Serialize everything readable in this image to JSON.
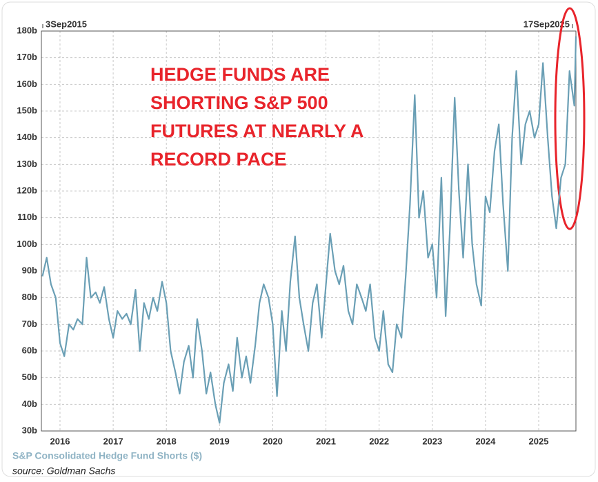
{
  "chart_data": {
    "type": "line",
    "start_label": "3Sep2015",
    "end_label": "17Sep2025",
    "annotation": [
      "HEDGE FUNDS ARE",
      "SHORTING S&P 500",
      "FUTURES AT NEARLY A",
      "RECORD PACE"
    ],
    "source": "source: Goldman Sachs",
    "x": [
      2015.67,
      2015.75,
      2015.83,
      2015.92,
      2016.0,
      2016.08,
      2016.17,
      2016.25,
      2016.33,
      2016.42,
      2016.5,
      2016.58,
      2016.67,
      2016.75,
      2016.83,
      2016.92,
      2017.0,
      2017.08,
      2017.17,
      2017.25,
      2017.33,
      2017.42,
      2017.5,
      2017.58,
      2017.67,
      2017.75,
      2017.83,
      2017.92,
      2018.0,
      2018.08,
      2018.17,
      2018.25,
      2018.33,
      2018.42,
      2018.5,
      2018.58,
      2018.67,
      2018.75,
      2018.83,
      2018.92,
      2019.0,
      2019.08,
      2019.17,
      2019.25,
      2019.33,
      2019.42,
      2019.5,
      2019.58,
      2019.67,
      2019.75,
      2019.83,
      2019.92,
      2020.0,
      2020.08,
      2020.17,
      2020.25,
      2020.33,
      2020.42,
      2020.5,
      2020.58,
      2020.67,
      2020.75,
      2020.83,
      2020.92,
      2021.0,
      2021.08,
      2021.17,
      2021.25,
      2021.33,
      2021.42,
      2021.5,
      2021.58,
      2021.67,
      2021.75,
      2021.83,
      2021.92,
      2022.0,
      2022.08,
      2022.17,
      2022.25,
      2022.33,
      2022.42,
      2022.5,
      2022.58,
      2022.67,
      2022.75,
      2022.83,
      2022.92,
      2023.0,
      2023.08,
      2023.17,
      2023.25,
      2023.33,
      2023.42,
      2023.5,
      2023.58,
      2023.67,
      2023.75,
      2023.83,
      2023.92,
      2024.0,
      2024.08,
      2024.17,
      2024.25,
      2024.33,
      2024.42,
      2024.5,
      2024.58,
      2024.67,
      2024.75,
      2024.83,
      2024.92,
      2025.0,
      2025.08,
      2025.17,
      2025.25,
      2025.33,
      2025.42,
      2025.5,
      2025.58,
      2025.67,
      2025.7
    ],
    "series": [
      {
        "name": "S&P Consolidated Hedge Fund Shorts ($)",
        "color": "#6a9fb5",
        "values": [
          88,
          95,
          85,
          80,
          63,
          58,
          70,
          68,
          72,
          70,
          95,
          80,
          82,
          78,
          84,
          72,
          65,
          75,
          72,
          74,
          70,
          83,
          60,
          78,
          72,
          80,
          75,
          86,
          78,
          60,
          52,
          44,
          56,
          62,
          50,
          72,
          60,
          44,
          52,
          40,
          33,
          48,
          55,
          45,
          65,
          50,
          58,
          48,
          62,
          78,
          85,
          80,
          70,
          43,
          75,
          60,
          86,
          103,
          80,
          70,
          60,
          78,
          85,
          65,
          85,
          104,
          90,
          85,
          92,
          75,
          70,
          85,
          80,
          75,
          85,
          65,
          60,
          75,
          55,
          52,
          70,
          65,
          88,
          115,
          156,
          110,
          120,
          95,
          100,
          80,
          125,
          73,
          105,
          155,
          120,
          95,
          130,
          100,
          85,
          77,
          118,
          112,
          135,
          145,
          115,
          90,
          140,
          165,
          130,
          145,
          150,
          140,
          145,
          168,
          140,
          118,
          106,
          125,
          130,
          165,
          152,
          178
        ]
      }
    ],
    "xlim": [
      2015.65,
      2025.7
    ],
    "xticks": [
      2016,
      2017,
      2018,
      2019,
      2020,
      2021,
      2022,
      2023,
      2024,
      2025
    ],
    "ylim": [
      30,
      180
    ],
    "yticks": [
      {
        "value": 30,
        "label": "30b"
      },
      {
        "value": 40,
        "label": "40b"
      },
      {
        "value": 50,
        "label": "50b"
      },
      {
        "value": 60,
        "label": "60b"
      },
      {
        "value": 70,
        "label": "70b"
      },
      {
        "value": 80,
        "label": "80b"
      },
      {
        "value": 90,
        "label": "90b"
      },
      {
        "value": 100,
        "label": "100b"
      },
      {
        "value": 110,
        "label": "110b"
      },
      {
        "value": 120,
        "label": "120b"
      },
      {
        "value": 130,
        "label": "130b"
      },
      {
        "value": 140,
        "label": "140b"
      },
      {
        "value": 150,
        "label": "150b"
      },
      {
        "value": 160,
        "label": "160b"
      },
      {
        "value": 170,
        "label": "170b"
      },
      {
        "value": 180,
        "label": "180b"
      }
    ],
    "grid": true
  }
}
